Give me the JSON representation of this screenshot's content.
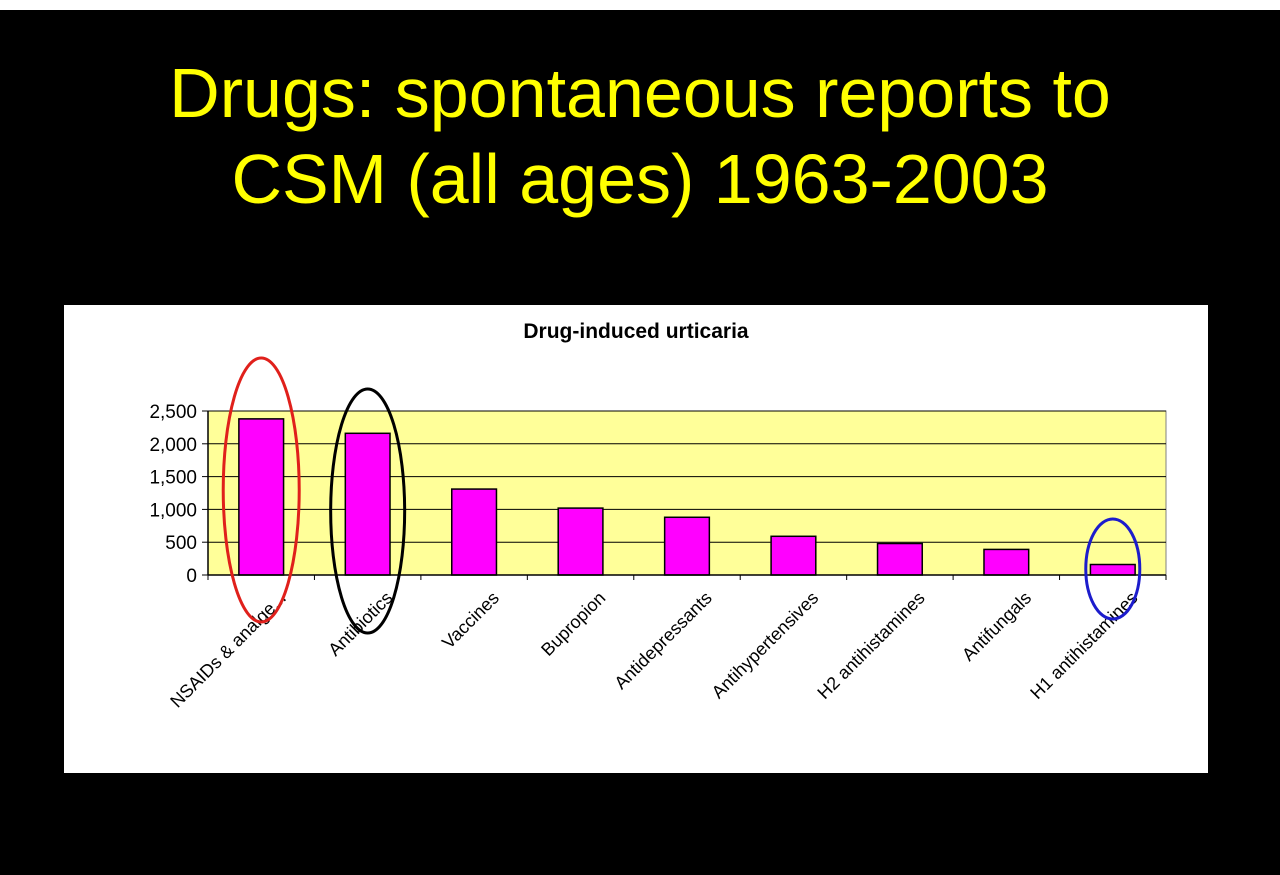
{
  "slide": {
    "title_line1": "Drugs: spontaneous reports to",
    "title_line2": "CSM (all ages) 1963-2003"
  },
  "chart_data": {
    "type": "bar",
    "title": "Drug-induced urticaria",
    "xlabel": "",
    "ylabel": "",
    "categories": [
      "NSAIDs & analge...",
      "Antibiotics",
      "Vaccines",
      "Bupropion",
      "Antidepressants",
      "Antihypertensives",
      "H2 antihistamines",
      "Antifungals",
      "H1 antihistamines"
    ],
    "values": [
      2380,
      2160,
      1310,
      1020,
      880,
      590,
      480,
      390,
      160
    ],
    "ylim": [
      0,
      2500
    ],
    "yticks": [
      0,
      500,
      1000,
      1500,
      2000,
      2500
    ],
    "ytick_labels": [
      "0",
      "500",
      "1,000",
      "1,500",
      "2,000",
      "2,500"
    ],
    "grid": true,
    "legend": "none",
    "colors": {
      "bar_fill": "#ff00ff",
      "bar_stroke": "#000000",
      "plot_background": "#ffff99",
      "gridline": "#000000"
    },
    "highlight_circles": [
      {
        "category": "NSAIDs & analge...",
        "color": "#e0201b"
      },
      {
        "category": "Antibiotics",
        "color": "#000000"
      },
      {
        "category": "H1 antihistamines",
        "color": "#1c1ccc"
      }
    ]
  }
}
